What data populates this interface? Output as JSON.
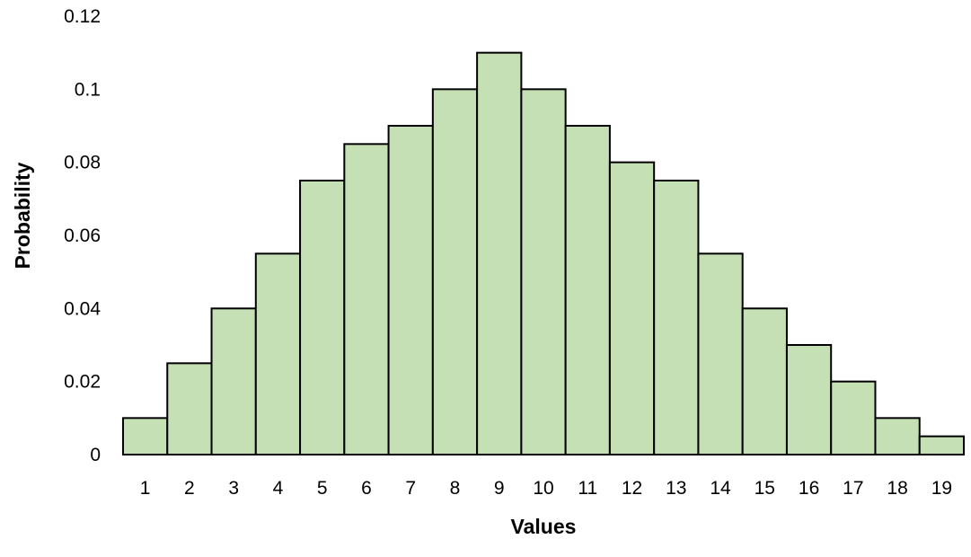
{
  "chart_data": {
    "type": "bar",
    "categories": [
      "1",
      "2",
      "3",
      "4",
      "5",
      "6",
      "7",
      "8",
      "9",
      "10",
      "11",
      "12",
      "13",
      "14",
      "15",
      "16",
      "17",
      "18",
      "19"
    ],
    "values": [
      0.01,
      0.025,
      0.04,
      0.055,
      0.075,
      0.085,
      0.09,
      0.1,
      0.11,
      0.1,
      0.09,
      0.08,
      0.075,
      0.055,
      0.04,
      0.03,
      0.02,
      0.01,
      0.005
    ],
    "y_ticks": [
      "0",
      "0.02",
      "0.04",
      "0.06",
      "0.08",
      "0.1",
      "0.12"
    ],
    "title": "",
    "xlabel": "Values",
    "ylabel": "Probability",
    "ylim": [
      0,
      0.12
    ],
    "grid": false,
    "legend": "none",
    "colors": {
      "bar_fill": "#c5e0b4",
      "bar_stroke": "#000000"
    }
  }
}
